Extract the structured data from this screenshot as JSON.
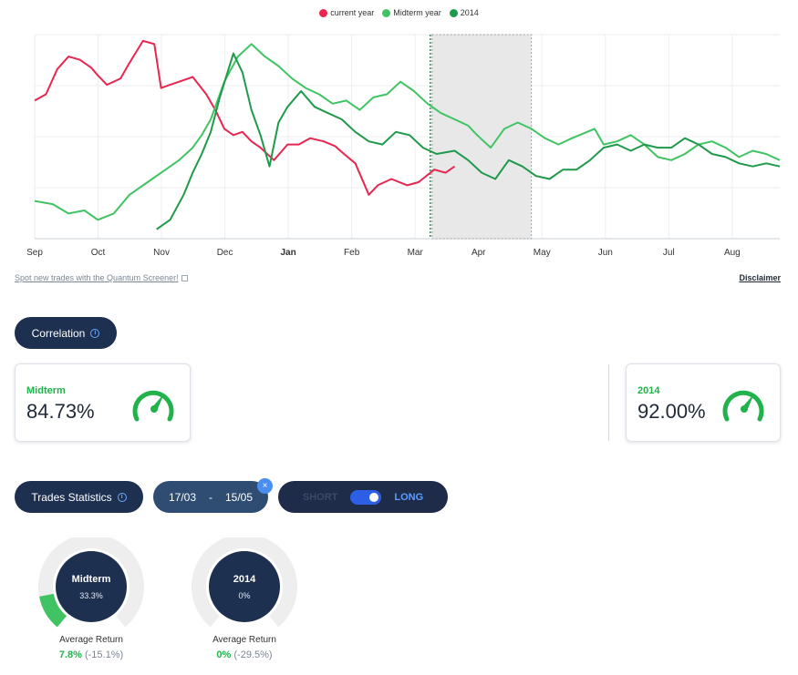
{
  "legend": [
    {
      "label": "current year",
      "color": "#e8264f"
    },
    {
      "label": "Midterm year",
      "color": "#40c463"
    },
    {
      "label": "2014",
      "color": "#1f9a4a"
    }
  ],
  "chart_data": {
    "type": "line",
    "x_ticks": [
      "Sep",
      "Oct",
      "Nov",
      "Dec",
      "Jan",
      "Feb",
      "Mar",
      "Apr",
      "May",
      "Jun",
      "Jul",
      "Aug"
    ],
    "bold_tick": "Jan",
    "grid": true,
    "series": [
      {
        "name": "current year",
        "color": "#e8264f",
        "points": [
          [
            0,
            58
          ],
          [
            5,
            62
          ],
          [
            10,
            78
          ],
          [
            15,
            86
          ],
          [
            20,
            84
          ],
          [
            25,
            79
          ],
          [
            28,
            74
          ],
          [
            32,
            68
          ],
          [
            38,
            72
          ],
          [
            42,
            82
          ],
          [
            48,
            96
          ],
          [
            53,
            94
          ],
          [
            56,
            66
          ],
          [
            60,
            68
          ],
          [
            64,
            70
          ],
          [
            70,
            73
          ],
          [
            76,
            62
          ],
          [
            80,
            52
          ],
          [
            84,
            40
          ],
          [
            88,
            36
          ],
          [
            92,
            38
          ],
          [
            96,
            32
          ],
          [
            100,
            28
          ],
          [
            106,
            20
          ],
          [
            112,
            30
          ],
          [
            117,
            30
          ],
          [
            122,
            34
          ],
          [
            128,
            32
          ],
          [
            133,
            29
          ],
          [
            137,
            24
          ],
          [
            142,
            18
          ],
          [
            148,
            -2
          ],
          [
            152,
            4
          ],
          [
            158,
            8
          ],
          [
            165,
            4
          ],
          [
            170,
            6
          ],
          [
            177,
            14
          ],
          [
            182,
            12
          ],
          [
            186,
            16
          ]
        ]
      },
      {
        "name": "Midterm year",
        "color": "#40c463",
        "points": [
          [
            0,
            -6
          ],
          [
            8,
            -8
          ],
          [
            15,
            -14
          ],
          [
            22,
            -12
          ],
          [
            28,
            -18
          ],
          [
            35,
            -14
          ],
          [
            42,
            -2
          ],
          [
            50,
            6
          ],
          [
            58,
            14
          ],
          [
            64,
            20
          ],
          [
            70,
            28
          ],
          [
            74,
            36
          ],
          [
            78,
            46
          ],
          [
            84,
            70
          ],
          [
            90,
            86
          ],
          [
            96,
            94
          ],
          [
            102,
            86
          ],
          [
            108,
            80
          ],
          [
            114,
            72
          ],
          [
            120,
            66
          ],
          [
            126,
            62
          ],
          [
            132,
            56
          ],
          [
            138,
            58
          ],
          [
            144,
            52
          ],
          [
            150,
            60
          ],
          [
            156,
            62
          ],
          [
            162,
            70
          ],
          [
            168,
            64
          ],
          [
            174,
            56
          ],
          [
            180,
            50
          ],
          [
            186,
            46
          ],
          [
            192,
            42
          ],
          [
            196,
            36
          ],
          [
            202,
            28
          ],
          [
            208,
            40
          ],
          [
            214,
            44
          ],
          [
            220,
            40
          ],
          [
            226,
            34
          ],
          [
            232,
            30
          ],
          [
            238,
            34
          ],
          [
            243,
            37
          ],
          [
            248,
            40
          ],
          [
            252,
            30
          ],
          [
            258,
            32
          ],
          [
            264,
            36
          ],
          [
            270,
            30
          ],
          [
            276,
            22
          ],
          [
            282,
            20
          ],
          [
            288,
            24
          ],
          [
            294,
            30
          ],
          [
            300,
            32
          ],
          [
            306,
            28
          ],
          [
            312,
            22
          ],
          [
            318,
            26
          ],
          [
            324,
            24
          ],
          [
            330,
            20
          ]
        ]
      },
      {
        "name": "2014",
        "color": "#1f9a4a",
        "points": [
          [
            54,
            -24
          ],
          [
            60,
            -18
          ],
          [
            66,
            -2
          ],
          [
            70,
            12
          ],
          [
            74,
            24
          ],
          [
            78,
            38
          ],
          [
            82,
            60
          ],
          [
            88,
            88
          ],
          [
            92,
            76
          ],
          [
            96,
            52
          ],
          [
            100,
            36
          ],
          [
            104,
            16
          ],
          [
            108,
            44
          ],
          [
            112,
            54
          ],
          [
            118,
            64
          ],
          [
            124,
            54
          ],
          [
            130,
            50
          ],
          [
            136,
            46
          ],
          [
            142,
            38
          ],
          [
            148,
            32
          ],
          [
            154,
            30
          ],
          [
            160,
            38
          ],
          [
            166,
            36
          ],
          [
            172,
            28
          ],
          [
            178,
            24
          ],
          [
            186,
            26
          ],
          [
            192,
            20
          ],
          [
            198,
            12
          ],
          [
            204,
            8
          ],
          [
            210,
            20
          ],
          [
            216,
            16
          ],
          [
            222,
            10
          ],
          [
            228,
            8
          ],
          [
            234,
            14
          ],
          [
            240,
            14
          ],
          [
            246,
            20
          ],
          [
            252,
            28
          ],
          [
            258,
            30
          ],
          [
            264,
            26
          ],
          [
            270,
            30
          ],
          [
            276,
            28
          ],
          [
            282,
            28
          ],
          [
            288,
            34
          ],
          [
            294,
            30
          ],
          [
            300,
            24
          ],
          [
            306,
            22
          ],
          [
            312,
            18
          ],
          [
            318,
            16
          ],
          [
            324,
            18
          ],
          [
            330,
            16
          ]
        ]
      }
    ],
    "highlight_range": [
      176,
      220
    ]
  },
  "links": {
    "screener": "Spot new trades with the Quantum Screener!",
    "disclaimer": "Disclaimer"
  },
  "correlation": {
    "title": "Correlation",
    "cards": [
      {
        "label": "Midterm",
        "value": "84.73%"
      },
      {
        "label": "2014",
        "value": "92.00%"
      }
    ]
  },
  "trades": {
    "title": "Trades Statistics",
    "date_from": "17/03",
    "date_sep": "-",
    "date_to": "15/05",
    "clear_icon": "×",
    "short_label": "SHORT",
    "long_label": "LONG",
    "toggle_state": "long",
    "donuts": [
      {
        "name": "Midterm",
        "pct": "33.3%",
        "fraction": 0.333,
        "avg_label": "Average Return",
        "avg_main": "7.8%",
        "avg_alt": "(-15.1%)"
      },
      {
        "name": "2014",
        "pct": "0%",
        "fraction": 0,
        "avg_label": "Average Return",
        "avg_main": "0%",
        "avg_alt": "(-29.5%)"
      }
    ]
  },
  "colors": {
    "accent_green": "#22b24c",
    "navy": "#1e3050",
    "red": "#e8264f"
  }
}
